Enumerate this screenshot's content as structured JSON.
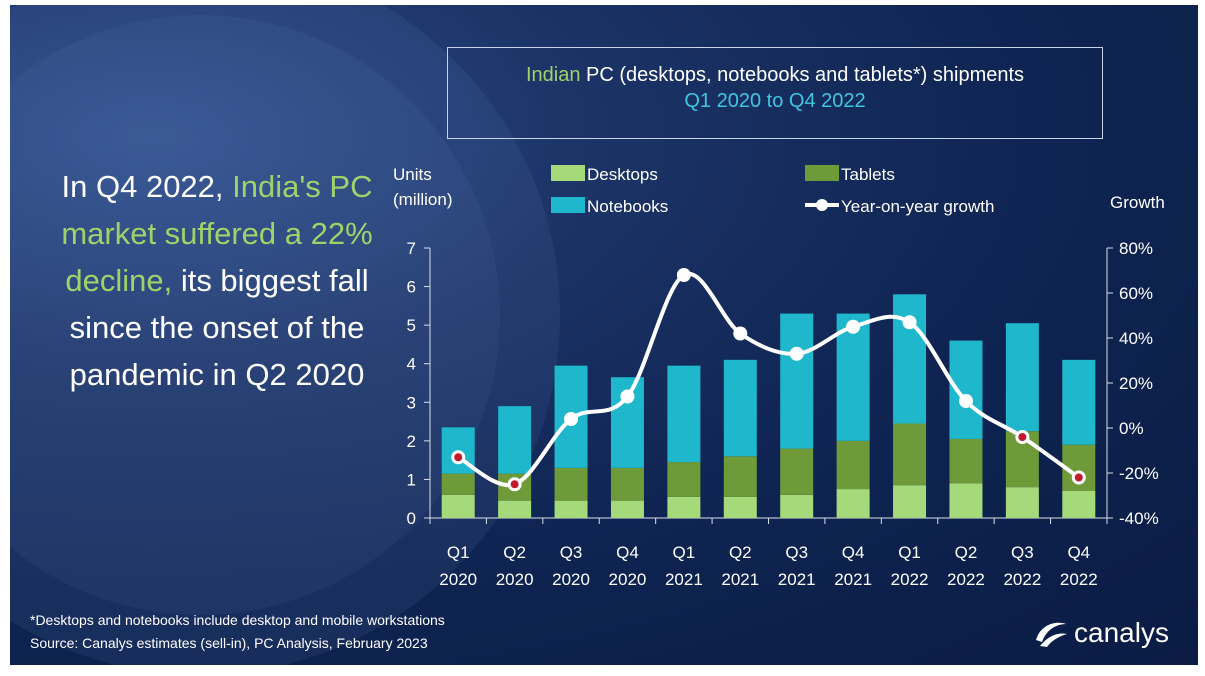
{
  "title": {
    "line1_highlight": "Indian",
    "line1_rest": " PC (desktops, notebooks and tablets*) shipments",
    "line2": "Q1 2020 to Q4 2022"
  },
  "headline": {
    "part1": "In Q4 2022, ",
    "highlight": "India's PC market suffered a 22% decline,",
    "part2": " its biggest fall since the onset of the pandemic in Q2 2020"
  },
  "footnote": {
    "line1": "*Desktops and notebooks include desktop and mobile workstations",
    "line2": "Source: Canalys estimates (sell-in), PC Analysis, February 2023"
  },
  "logo": {
    "text": "canalys"
  },
  "colors": {
    "desktops": "#a6d97a",
    "tablets": "#6f9a39",
    "notebooks": "#1fb7cc",
    "growth_line": "#ffffff",
    "growth_marker": "#c4182d"
  },
  "chart_data": {
    "type": "bar",
    "stacked": true,
    "categories": [
      [
        "Q1",
        "2020"
      ],
      [
        "Q2",
        "2020"
      ],
      [
        "Q3",
        "2020"
      ],
      [
        "Q4",
        "2020"
      ],
      [
        "Q1",
        "2021"
      ],
      [
        "Q2",
        "2021"
      ],
      [
        "Q3",
        "2021"
      ],
      [
        "Q4",
        "2021"
      ],
      [
        "Q1",
        "2022"
      ],
      [
        "Q2",
        "2022"
      ],
      [
        "Q3",
        "2022"
      ],
      [
        "Q4",
        "2022"
      ]
    ],
    "series": [
      {
        "name": "Desktops",
        "values": [
          0.6,
          0.45,
          0.45,
          0.45,
          0.55,
          0.55,
          0.6,
          0.75,
          0.85,
          0.9,
          0.8,
          0.7
        ]
      },
      {
        "name": "Tablets",
        "values": [
          0.55,
          0.7,
          0.85,
          0.85,
          0.9,
          1.05,
          1.2,
          1.25,
          1.6,
          1.15,
          1.45,
          1.2
        ]
      },
      {
        "name": "Notebooks",
        "values": [
          1.2,
          1.75,
          2.65,
          2.35,
          2.5,
          2.5,
          3.5,
          3.3,
          3.35,
          2.55,
          2.8,
          2.2
        ]
      }
    ],
    "growth": {
      "name": "Year-on-year growth",
      "values": [
        -13,
        -25,
        4,
        14,
        68,
        42,
        33,
        45,
        47,
        12,
        -4,
        -22
      ]
    },
    "ylabel_left": [
      "Units",
      "(million)"
    ],
    "ylabel_right": "Growth",
    "ylim_left": [
      0,
      7
    ],
    "yticks_left": [
      "0",
      "1",
      "2",
      "3",
      "4",
      "5",
      "6",
      "7"
    ],
    "ylim_right": [
      -40,
      80
    ],
    "yticks_right": [
      "-40%",
      "-20%",
      "0%",
      "20%",
      "40%",
      "60%",
      "80%"
    ],
    "legend_position": "top",
    "grid": false
  }
}
